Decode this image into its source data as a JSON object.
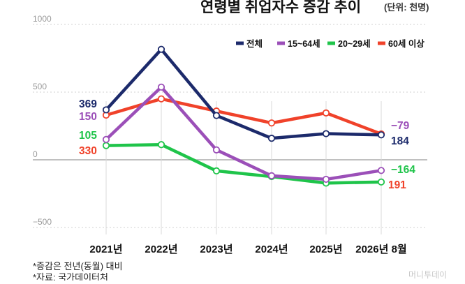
{
  "title": "연령별 취업자수 증감 추이",
  "unit": "(단위: 천명)",
  "notes": [
    "*증감은 전년(동월) 대비",
    "*자료: 국가데이터처"
  ],
  "watermark": "머니투데이",
  "chart_data": {
    "type": "line",
    "categories": [
      "2021년",
      "2022년",
      "2023년",
      "2024년",
      "2025년",
      "2026년 8월"
    ],
    "ylim": [
      -500,
      1000
    ],
    "yticks": [
      1000,
      500,
      0,
      -500
    ],
    "grid": true,
    "legend_position": "top-right",
    "series": [
      {
        "name": "전체",
        "color": "#1c2a6b",
        "values": [
          369,
          816,
          327,
          159,
          193,
          184
        ],
        "labels": {
          "first": "369",
          "last": "184"
        }
      },
      {
        "name": "15~64세",
        "color": "#9b4fb8",
        "values": [
          150,
          537,
          73,
          -118,
          -144,
          -79
        ],
        "labels": {
          "first": "150",
          "last": "-79"
        }
      },
      {
        "name": "20~29세",
        "color": "#1fc44a",
        "values": [
          105,
          112,
          -82,
          -124,
          -172,
          -164
        ],
        "labels": {
          "first": "105",
          "last": "-164"
        }
      },
      {
        "name": "60세 이상",
        "color": "#f0422a",
        "values": [
          330,
          450,
          360,
          272,
          346,
          191
        ],
        "labels": {
          "first": "330",
          "last": "191"
        }
      }
    ]
  }
}
